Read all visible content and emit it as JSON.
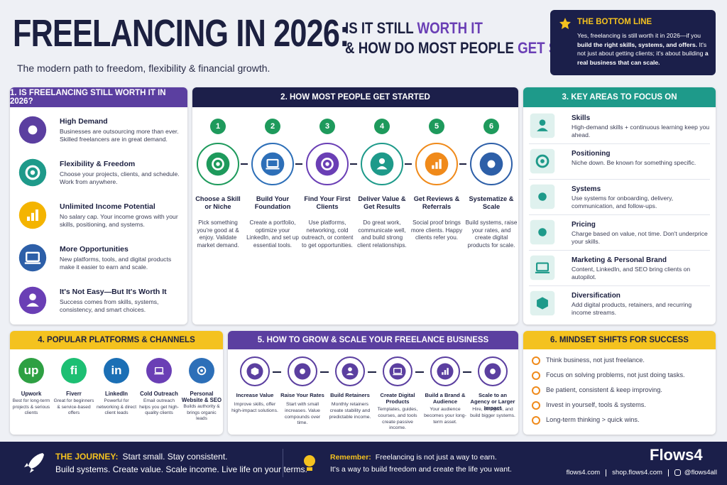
{
  "header": {
    "title": "FREELANCING IN 2026:",
    "question_1": "IS IT STILL",
    "question_1_highlight": "WORTH IT",
    "question_2": "& HOW DO MOST PEOPLE",
    "question_2_highlight": "GET STARTED?",
    "subtitle": "The modern path to freedom, flexibility & financial growth."
  },
  "bottom_line": {
    "heading": "THE BOTTOM LINE",
    "segments": [
      {
        "text": "Yes, freelancing is still worth it in 2026—if you",
        "bold": false
      },
      {
        "text": "build the right skills, systems, and offers.",
        "bold": true
      },
      {
        "text": "It's not just about getting clients; it's about building",
        "bold": false
      },
      {
        "text": "a real business that can scale.",
        "bold": true
      }
    ]
  },
  "section_1": {
    "title": "1. IS FREELANCING STILL WORTH IT IN 2026?",
    "items": [
      {
        "title": "High Demand",
        "text": "Businesses are outsourcing more than ever. Skilled freelancers are in great demand."
      },
      {
        "title": "Flexibility & Freedom",
        "text": "Choose your projects, clients, and schedule. Work from anywhere."
      },
      {
        "title": "Unlimited Income Potential",
        "text": "No salary cap. Your income grows with your skills, positioning, and systems."
      },
      {
        "title": "More Opportunities",
        "text": "New platforms, tools, and digital products make it easier to earn and scale."
      },
      {
        "title": "It's Not Easy—But It's Worth It",
        "text": "Success comes from skills, systems, consistency, and smart choices."
      }
    ]
  },
  "section_2": {
    "title": "2. HOW MOST PEOPLE GET STARTED",
    "steps": [
      {
        "number": "1",
        "title": "Choose a Skill or Niche",
        "text": "Pick something you're good at & enjoy. Validate market demand."
      },
      {
        "number": "2",
        "title": "Build Your Foundation",
        "text": "Create a portfolio, optimize your LinkedIn, and set up essential tools."
      },
      {
        "number": "3",
        "title": "Find Your First Clients",
        "text": "Use platforms, networking, cold outreach, or content to get opportunities."
      },
      {
        "number": "4",
        "title": "Deliver Value & Get Results",
        "text": "Do great work, communicate well, and build strong client relationships."
      },
      {
        "number": "5",
        "title": "Get Reviews & Referrals",
        "text": "Social proof brings more clients. Happy clients refer you."
      },
      {
        "number": "6",
        "title": "Systematize & Scale",
        "text": "Build systems, raise your rates, and create digital products for scale."
      }
    ]
  },
  "section_3": {
    "title": "3. KEY AREAS TO FOCUS ON",
    "items": [
      {
        "title": "Skills",
        "text": "High-demand skills + continuous learning keep you ahead."
      },
      {
        "title": "Positioning",
        "text": "Niche down. Be known for something specific."
      },
      {
        "title": "Systems",
        "text": "Use systems for onboarding, delivery, communication, and follow-ups."
      },
      {
        "title": "Pricing",
        "text": "Charge based on value, not time. Don't underprice your skills."
      },
      {
        "title": "Marketing & Personal Brand",
        "text": "Content, LinkedIn, and SEO bring clients on autopilot."
      },
      {
        "title": "Diversification",
        "text": "Add digital products, retainers, and recurring income streams."
      }
    ]
  },
  "section_4": {
    "title": "4. POPULAR PLATFORMS & CHANNELS",
    "platforms": [
      {
        "logo": "up",
        "name": "Upwork",
        "text": "Best for long-term projects & serious clients"
      },
      {
        "logo": "fi",
        "name": "Fiverr",
        "text": "Great for beginners & service-based offers"
      },
      {
        "logo": "in",
        "name": "LinkedIn",
        "text": "Powerful for networking & direct client leads"
      },
      {
        "name": "Cold Outreach",
        "text": "Email outreach helps you get high-quality clients"
      },
      {
        "name": "Personal Website & SEO",
        "text": "Builds authority & brings organic leads"
      }
    ]
  },
  "section_5": {
    "title": "5. HOW TO GROW & SCALE YOUR FREELANCE BUSINESS",
    "steps": [
      {
        "title": "Increase Value",
        "text": "Improve skills, offer high-impact solutions."
      },
      {
        "title": "Raise Your Rates",
        "text": "Start with small increases. Value compounds over time."
      },
      {
        "title": "Build Retainers",
        "text": "Monthly retainers create stability and predictable income."
      },
      {
        "title": "Create Digital Products",
        "text": "Templates, guides, courses, and tools create passive income."
      },
      {
        "title": "Build a Brand & Audience",
        "text": "Your audience becomes your long-term asset."
      },
      {
        "title": "Scale to an Agency or Larger Impact",
        "text": "Hire, delegate, and build bigger systems."
      }
    ]
  },
  "section_6": {
    "title": "6. MINDSET SHIFTS FOR SUCCESS",
    "items": [
      "Think business, not just freelance.",
      "Focus on solving problems, not just doing tasks.",
      "Be patient, consistent & keep improving.",
      "Invest in yourself, tools & systems.",
      "Long-term thinking > quick wins."
    ]
  },
  "footer": {
    "journey_label": "THE JOURNEY:",
    "journey_text_1": "Start small. Stay consistent.",
    "journey_text_2": "Build systems. Create value. Scale income. Live life on your terms.",
    "remember_label": "Remember:",
    "remember_text_1": "Freelancing is not just a way to earn.",
    "remember_text_2": "It's a way to build freedom and create the life you want.",
    "brand": "Flows4",
    "links": [
      "flows4.com",
      "shop.flows4.com",
      "@flows4all"
    ]
  }
}
